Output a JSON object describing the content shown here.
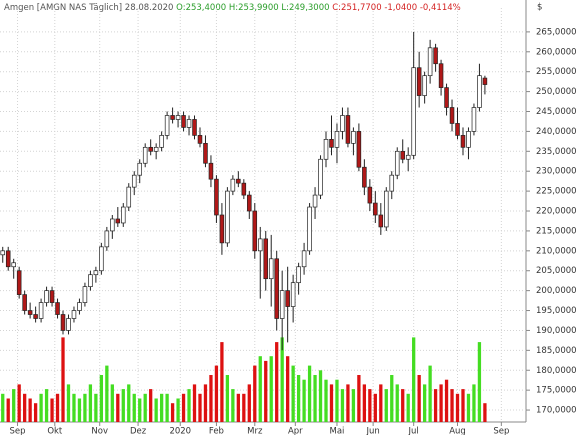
{
  "chart_data": {
    "type": "candlestick",
    "title": "Amgen [AMGN NAS  Täglich] 28.08.2020",
    "quote": {
      "open": "O:253,4000",
      "high": "H:253,9900",
      "low": "L:249,3000",
      "close": "C:251,7700",
      "change": "-1,0400",
      "change_pct": "-0,4114%"
    },
    "y_unit": "$",
    "up_color": "#ffffff",
    "down_color": "#b01818",
    "wick_color": "#222222",
    "vol_up_color": "#44dd22",
    "vol_down_color": "#dd1111",
    "grid": true,
    "xlim": [
      -0.5,
      95.5
    ],
    "xticks": [
      {
        "value": 2.7,
        "label": "Sep"
      },
      {
        "value": 9.5,
        "label": "Okt"
      },
      {
        "value": 17.7,
        "label": "Nov"
      },
      {
        "value": 24.7,
        "label": "Dez"
      },
      {
        "value": 32.4,
        "label": "2020"
      },
      {
        "value": 39,
        "label": "Feb"
      },
      {
        "value": 46,
        "label": "Mrz"
      },
      {
        "value": 53.4,
        "label": "Apr"
      },
      {
        "value": 61,
        "label": "Mai"
      },
      {
        "value": 67.6,
        "label": "Jun"
      },
      {
        "value": 75,
        "label": "Jul"
      },
      {
        "value": 83,
        "label": "Aug"
      },
      {
        "value": 91,
        "label": "Sep"
      }
    ],
    "ylim": [
      167,
      271
    ],
    "yticks": [
      {
        "value": 170,
        "label": "170,0000"
      },
      {
        "value": 175,
        "label": "175,0000"
      },
      {
        "value": 180,
        "label": "180,0000"
      },
      {
        "value": 185,
        "label": "185,0000"
      },
      {
        "value": 190,
        "label": "190,0000"
      },
      {
        "value": 195,
        "label": "195,0000"
      },
      {
        "value": 200,
        "label": "200,0000"
      },
      {
        "value": 205,
        "label": "205,0000"
      },
      {
        "value": 210,
        "label": "210,0000"
      },
      {
        "value": 215,
        "label": "215,0000"
      },
      {
        "value": 220,
        "label": "220,0000"
      },
      {
        "value": 225,
        "label": "225,0000"
      },
      {
        "value": 230,
        "label": "230,0000"
      },
      {
        "value": 235,
        "label": "235,0000"
      },
      {
        "value": 240,
        "label": "240,0000"
      },
      {
        "value": 245,
        "label": "245,0000"
      },
      {
        "value": 250,
        "label": "250,0000"
      },
      {
        "value": 255,
        "label": "255,0000"
      },
      {
        "value": 260,
        "label": "260,0000"
      },
      {
        "value": 265,
        "label": "265,0000"
      }
    ],
    "ohlc": [
      [
        209,
        211,
        207,
        210
      ],
      [
        210,
        211,
        205,
        206
      ],
      [
        206,
        208,
        203,
        207
      ],
      [
        205,
        206,
        198,
        199
      ],
      [
        199,
        200,
        194,
        195
      ],
      [
        195,
        197,
        193,
        194
      ],
      [
        194,
        196,
        192,
        193
      ],
      [
        193,
        198,
        192,
        197
      ],
      [
        197,
        201,
        196,
        200
      ],
      [
        200,
        201,
        196,
        197
      ],
      [
        197,
        198,
        193,
        194
      ],
      [
        194,
        195,
        189,
        190
      ],
      [
        190,
        194,
        189,
        193
      ],
      [
        193,
        196,
        192,
        195
      ],
      [
        195,
        198,
        194,
        197
      ],
      [
        197,
        202,
        196,
        201
      ],
      [
        201,
        205,
        200,
        204
      ],
      [
        204,
        206,
        202,
        205
      ],
      [
        205,
        212,
        204,
        211
      ],
      [
        211,
        216,
        210,
        215
      ],
      [
        215,
        219,
        213,
        218
      ],
      [
        218,
        221,
        216,
        217
      ],
      [
        217,
        222,
        216,
        221
      ],
      [
        221,
        227,
        220,
        226
      ],
      [
        226,
        230,
        224,
        229
      ],
      [
        229,
        233,
        227,
        232
      ],
      [
        232,
        237,
        231,
        236
      ],
      [
        236,
        238,
        234,
        235
      ],
      [
        235,
        237,
        233,
        236
      ],
      [
        236,
        240,
        235,
        239
      ],
      [
        239,
        245,
        238,
        244
      ],
      [
        244,
        246,
        242,
        243
      ],
      [
        243,
        245,
        241,
        244
      ],
      [
        244,
        245,
        240,
        241
      ],
      [
        241,
        244,
        239,
        243
      ],
      [
        243,
        244,
        238,
        239
      ],
      [
        239,
        241,
        236,
        237
      ],
      [
        237,
        239,
        231,
        232
      ],
      [
        232,
        234,
        226,
        228
      ],
      [
        228,
        229,
        217,
        219
      ],
      [
        219,
        222,
        209,
        212
      ],
      [
        212,
        226,
        211,
        225
      ],
      [
        225,
        229,
        224,
        228
      ],
      [
        228,
        230,
        226,
        227
      ],
      [
        227,
        228,
        223,
        224
      ],
      [
        224,
        225,
        218,
        220
      ],
      [
        220,
        222,
        208,
        210
      ],
      [
        210,
        216,
        198,
        213
      ],
      [
        213,
        215,
        200,
        203
      ],
      [
        203,
        214,
        196,
        208
      ],
      [
        208,
        210,
        190,
        193
      ],
      [
        193,
        205,
        185,
        200
      ],
      [
        200,
        206,
        187,
        196
      ],
      [
        196,
        204,
        192,
        202
      ],
      [
        202,
        207,
        199,
        206
      ],
      [
        206,
        212,
        204,
        210
      ],
      [
        210,
        222,
        209,
        221
      ],
      [
        221,
        226,
        218,
        224
      ],
      [
        224,
        234,
        223,
        233
      ],
      [
        233,
        240,
        231,
        238
      ],
      [
        238,
        244,
        234,
        236
      ],
      [
        236,
        242,
        232,
        240
      ],
      [
        240,
        246,
        238,
        244
      ],
      [
        244,
        246,
        236,
        237
      ],
      [
        237,
        241,
        234,
        240
      ],
      [
        240,
        242,
        230,
        231
      ],
      [
        231,
        233,
        224,
        226
      ],
      [
        226,
        228,
        220,
        222
      ],
      [
        222,
        225,
        217,
        219
      ],
      [
        219,
        222,
        214,
        216
      ],
      [
        216,
        226,
        215,
        225
      ],
      [
        225,
        230,
        223,
        229
      ],
      [
        229,
        236,
        228,
        235
      ],
      [
        235,
        238,
        232,
        233
      ],
      [
        233,
        236,
        230,
        234
      ],
      [
        234,
        265,
        233,
        256
      ],
      [
        256,
        260,
        246,
        249
      ],
      [
        249,
        255,
        247,
        254
      ],
      [
        254,
        263,
        252,
        261
      ],
      [
        261,
        262,
        255,
        257
      ],
      [
        257,
        258,
        249,
        251
      ],
      [
        251,
        252,
        244,
        246
      ],
      [
        246,
        248,
        240,
        242
      ],
      [
        242,
        246,
        238,
        239
      ],
      [
        239,
        241,
        234,
        236
      ],
      [
        236,
        241,
        233,
        240
      ],
      [
        240,
        247,
        239,
        246
      ],
      [
        246,
        257,
        245,
        254
      ],
      [
        253.4,
        253.99,
        249.3,
        251.77
      ]
    ],
    "volume": [
      3,
      2.5,
      3.5,
      4,
      3,
      2.5,
      2,
      3,
      3.5,
      2.5,
      3,
      9,
      4,
      3,
      2.5,
      3,
      4,
      3,
      5,
      6,
      4,
      3,
      3.5,
      4,
      3,
      2.5,
      3,
      3.5,
      2.5,
      3,
      3,
      2,
      2.5,
      3,
      3.5,
      4,
      3,
      4,
      5,
      6,
      8.5,
      5,
      3.5,
      3,
      3,
      4,
      6,
      7,
      6.5,
      7,
      8.5,
      9,
      7,
      6,
      5,
      4.5,
      6,
      5,
      5.5,
      4.5,
      4,
      4.5,
      3.5,
      4,
      3.5,
      5,
      4,
      3.5,
      3,
      4,
      3.5,
      5,
      4,
      3.5,
      3,
      9,
      5,
      4,
      6,
      3.5,
      4,
      4.5,
      3.5,
      3,
      3.5,
      3,
      4,
      8.5,
      2
    ]
  }
}
